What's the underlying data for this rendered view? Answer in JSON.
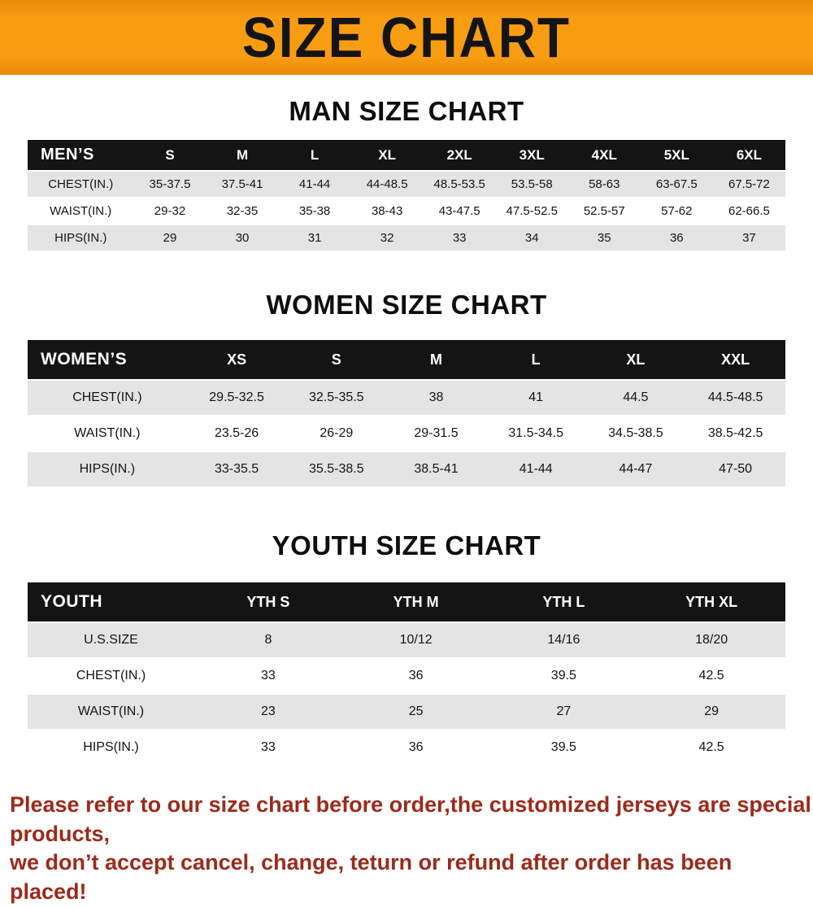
{
  "banner": {
    "title": "SIZE CHART"
  },
  "colors": {
    "banner_orange": "#f89c12",
    "table_header_black": "#141414",
    "row_gray": "#e4e4e4",
    "footer_red": "#9c2a1b"
  },
  "chart_data": [
    {
      "type": "table",
      "title": "MAN SIZE CHART",
      "columns": [
        "MEN’S",
        "S",
        "M",
        "L",
        "XL",
        "2XL",
        "3XL",
        "4XL",
        "5XL",
        "6XL"
      ],
      "rows": [
        [
          "CHEST(IN.)",
          "35-37.5",
          "37.5-41",
          "41-44",
          "44-48.5",
          "48.5-53.5",
          "53.5-58",
          "58-63",
          "63-67.5",
          "67.5-72"
        ],
        [
          "WAIST(IN.)",
          "29-32",
          "32-35",
          "35-38",
          "38-43",
          "43-47.5",
          "47.5-52.5",
          "52.5-57",
          "57-62",
          "62-66.5"
        ],
        [
          "HIPS(IN.)",
          "29",
          "30",
          "31",
          "32",
          "33",
          "34",
          "35",
          "36",
          "37"
        ]
      ]
    },
    {
      "type": "table",
      "title": "WOMEN SIZE CHART",
      "columns": [
        "WOMEN’S",
        "XS",
        "S",
        "M",
        "L",
        "XL",
        "XXL"
      ],
      "rows": [
        [
          "CHEST(IN.)",
          "29.5-32.5",
          "32.5-35.5",
          "38",
          "41",
          "44.5",
          "44.5-48.5"
        ],
        [
          "WAIST(IN.)",
          "23.5-26",
          "26-29",
          "29-31.5",
          "31.5-34.5",
          "34.5-38.5",
          "38.5-42.5"
        ],
        [
          "HIPS(IN.)",
          "33-35.5",
          "35.5-38.5",
          "38.5-41",
          "41-44",
          "44-47",
          "47-50"
        ]
      ]
    },
    {
      "type": "table",
      "title": "YOUTH SIZE CHART",
      "columns": [
        "YOUTH",
        "YTH S",
        "YTH M",
        "YTH L",
        "YTH XL"
      ],
      "rows": [
        [
          "U.S.SIZE",
          "8",
          "10/12",
          "14/16",
          "18/20"
        ],
        [
          "CHEST(IN.)",
          "33",
          "36",
          "39.5",
          "42.5"
        ],
        [
          "WAIST(IN.)",
          "23",
          "25",
          "27",
          "29"
        ],
        [
          "HIPS(IN.)",
          "33",
          "36",
          "39.5",
          "42.5"
        ]
      ]
    }
  ],
  "footer": {
    "line1": "Please refer to our size chart before order,the customized jerseys are special products,",
    "line2": "we don’t accept cancel, change, teturn or refund after order has been placed!"
  }
}
